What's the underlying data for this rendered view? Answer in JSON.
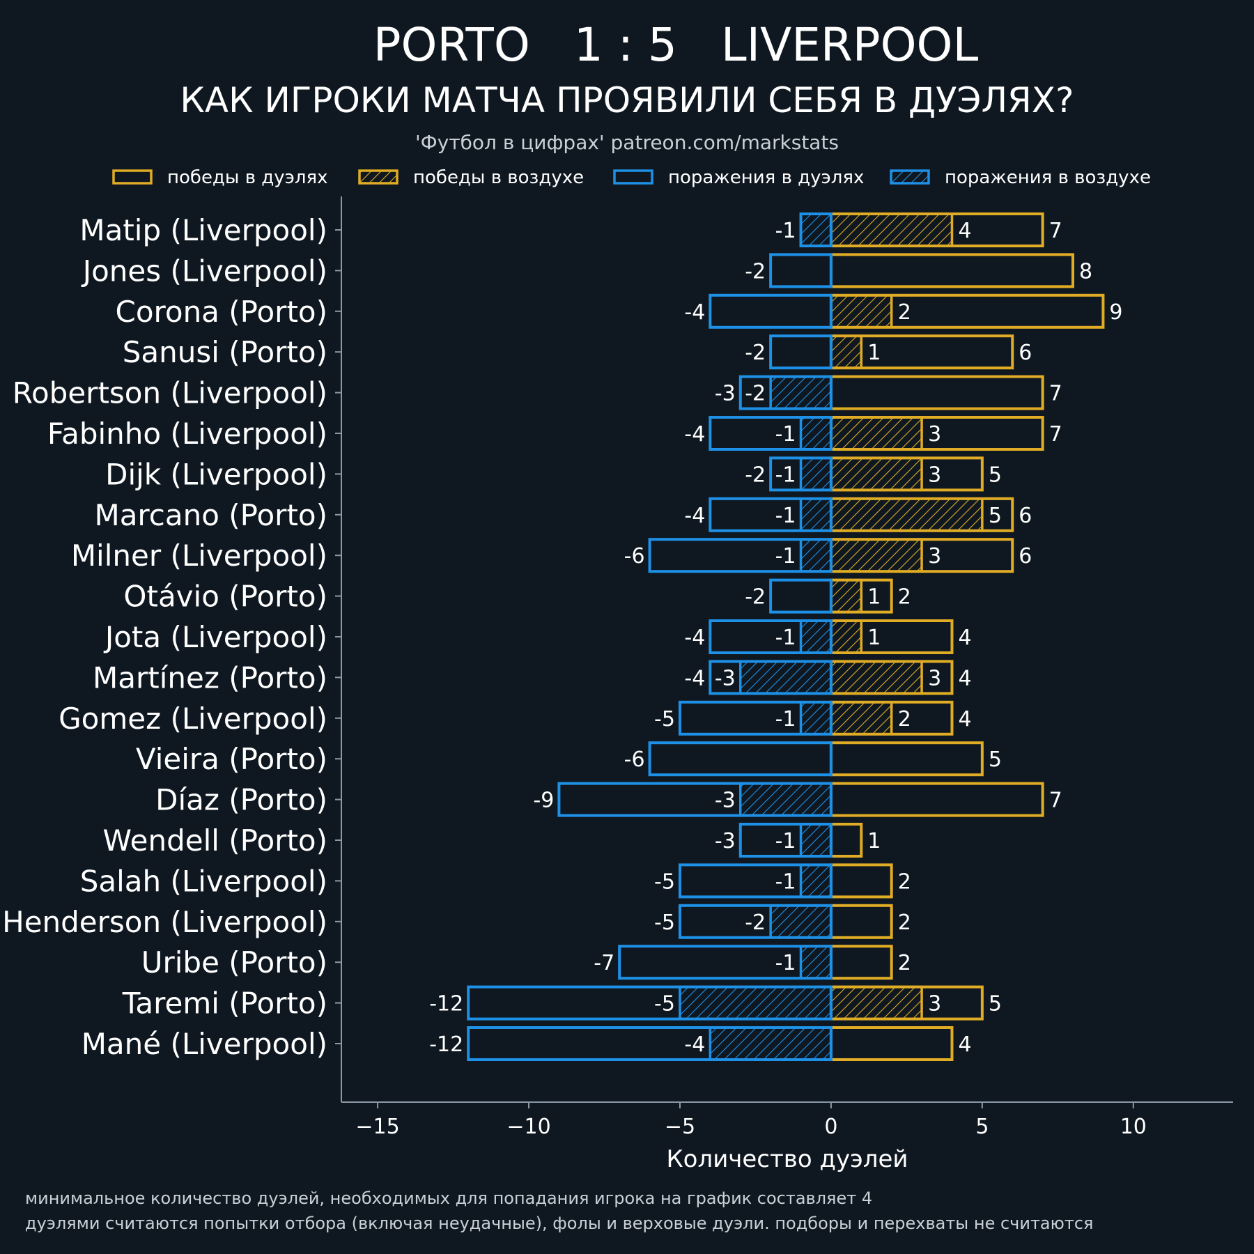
{
  "title": "PORTO   1 : 5   LIVERPOOL",
  "subtitle": "КАК ИГРОКИ МАТЧА ПРОЯВИЛИ СЕБЯ В ДУЭЛЯХ?",
  "credit": "'Футбол в цифрах' patreon.com/markstats",
  "footnotes": [
    "минимальное количество дуэлей, необходимых для попадания игрока на график составляет 4",
    "дуэлями считаются попытки отбора (включая неудачные), фолы и верховые дуэли. подборы и перехваты не считаются"
  ],
  "colors": {
    "background": "#0f1821",
    "wins": "#e0ac25",
    "losses": "#1e90e6",
    "axis": "#8a9aa6",
    "text": "#ffffff",
    "muted": "#c9d1d7"
  },
  "chart_data": {
    "type": "bar",
    "orientation": "horizontal",
    "xlabel": "Количество дуэлей",
    "ylabel": "",
    "xlim": [
      -16.2,
      13.3
    ],
    "xticks": [
      -15,
      -10,
      -5,
      0,
      5,
      10
    ],
    "xtick_labels": [
      "−15",
      "−10",
      "−5",
      "0",
      "5",
      "10"
    ],
    "legend": {
      "placement": "top",
      "entries": [
        {
          "label": "победы в дуэлях",
          "series": "duel_wins",
          "hatched": false
        },
        {
          "label": "победы в воздухе",
          "series": "aerial_wins",
          "hatched": true
        },
        {
          "label": "поражения в дуэлях",
          "series": "duel_losses",
          "hatched": false
        },
        {
          "label": "поражения в воздухе",
          "series": "aerial_losses",
          "hatched": true
        }
      ]
    },
    "categories": [
      "Matip (Liverpool)",
      "Jones (Liverpool)",
      "Corona (Porto)",
      "Sanusi (Porto)",
      "Robertson (Liverpool)",
      "Fabinho (Liverpool)",
      "Dijk (Liverpool)",
      "Marcano (Porto)",
      "Milner (Liverpool)",
      "Otávio (Porto)",
      "Jota (Liverpool)",
      "Martínez (Porto)",
      "Gomez (Liverpool)",
      "Vieira (Porto)",
      "Díaz (Porto)",
      "Wendell (Porto)",
      "Salah (Liverpool)",
      "Henderson (Liverpool)",
      "Uribe (Porto)",
      "Taremi (Porto)",
      "Mané (Liverpool)"
    ],
    "series": [
      {
        "name": "победы в дуэлях",
        "key": "duel_wins",
        "values": [
          7,
          8,
          9,
          6,
          7,
          7,
          5,
          6,
          6,
          2,
          4,
          4,
          4,
          5,
          7,
          1,
          2,
          2,
          2,
          5,
          4
        ]
      },
      {
        "name": "победы в воздухе",
        "key": "aerial_wins",
        "values": [
          4,
          0,
          2,
          1,
          0,
          3,
          3,
          5,
          3,
          1,
          1,
          3,
          2,
          0,
          0,
          0,
          0,
          0,
          0,
          3,
          0
        ]
      },
      {
        "name": "поражения в дуэлях",
        "key": "duel_losses",
        "values": [
          -1,
          -2,
          -4,
          -2,
          -3,
          -4,
          -2,
          -4,
          -6,
          -2,
          -4,
          -4,
          -5,
          -6,
          -9,
          -3,
          -5,
          -5,
          -7,
          -12,
          -12
        ]
      },
      {
        "name": "поражения в воздухе",
        "key": "aerial_losses",
        "values": [
          -1,
          0,
          0,
          0,
          -2,
          -1,
          -1,
          -1,
          -1,
          0,
          -1,
          -3,
          -1,
          0,
          -3,
          -1,
          -1,
          -2,
          -1,
          -5,
          -4
        ]
      }
    ]
  }
}
